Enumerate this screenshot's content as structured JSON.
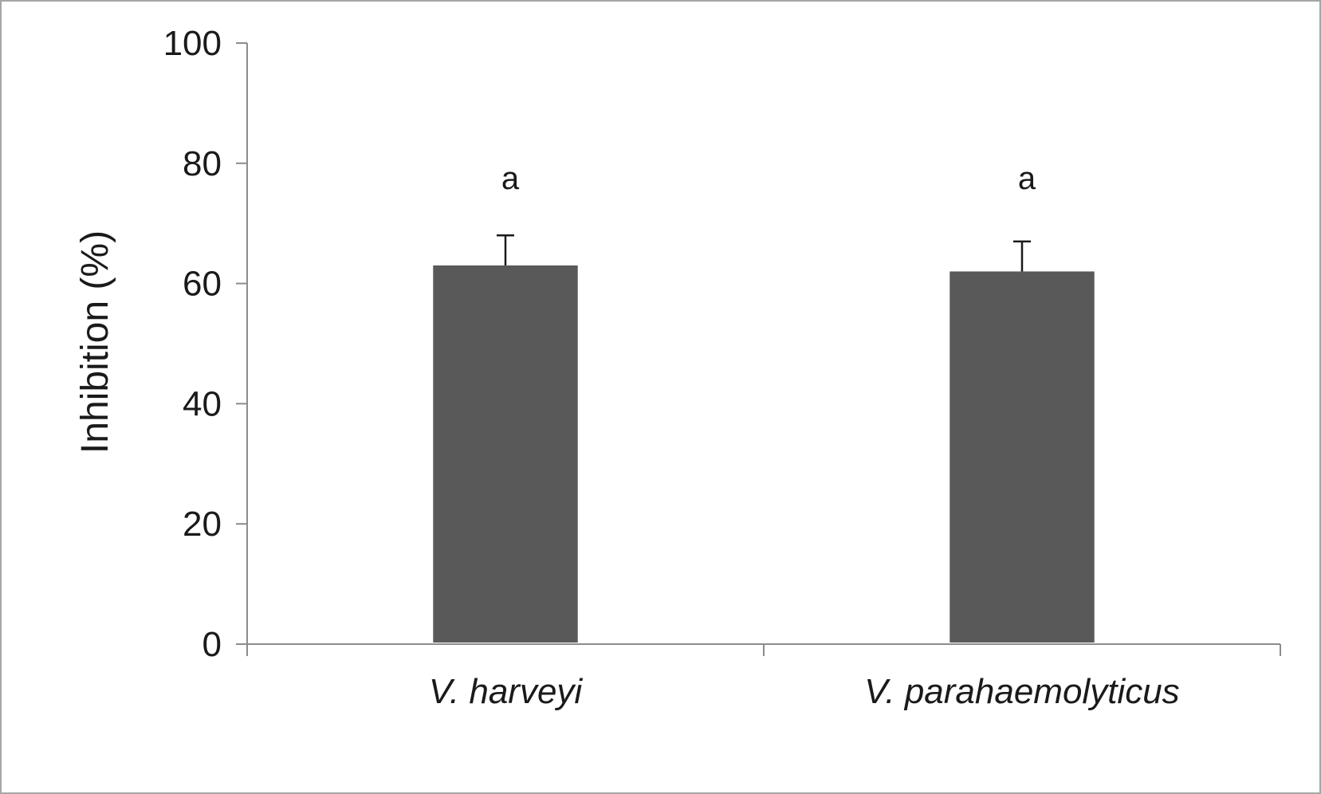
{
  "chart_data": {
    "type": "bar",
    "title": "",
    "xlabel": "",
    "ylabel": "Inhibition (%)",
    "ylim": [
      0,
      100
    ],
    "yticks": [
      0,
      20,
      40,
      60,
      80,
      100
    ],
    "categories": [
      "V. harveyi",
      "V. parahaemolyticus"
    ],
    "series": [
      {
        "values": [
          63,
          62
        ],
        "error_plus": [
          5,
          5
        ],
        "significance": [
          "a",
          "a"
        ],
        "color": "#595959"
      }
    ],
    "grid": false,
    "legend": "none"
  }
}
